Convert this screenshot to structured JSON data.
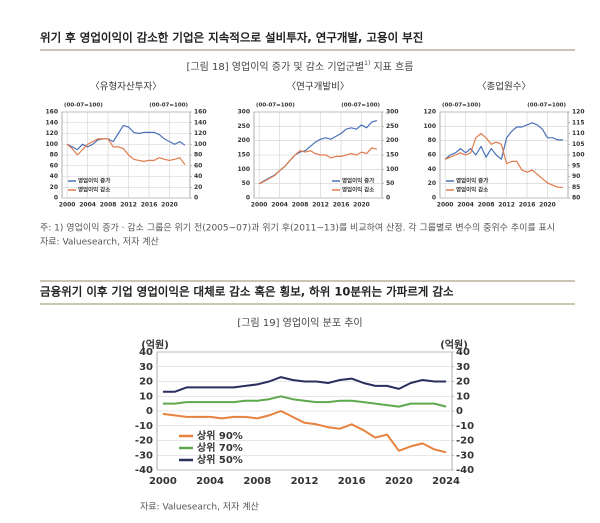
{
  "section1": {
    "heading": "위기 후 영업이익이 감소한 기업은 지속적으로 설비투자, 연구개발, 고용이 부진"
  },
  "figure18": {
    "title_parts": [
      "[그림 18] 영업이익 증가 및 감소 기업군별",
      "1)",
      " 지표 흐름"
    ],
    "note": "주: 1) 영업이익 증가 · 감소 그룹은 위기 전(2005~07)과 위기 후(2011~13)를 비교하여 산정. 각 그룹별로 변수의 중위수 추이를 표시",
    "source": "자료: Valuesearch, 저자 계산"
  },
  "section2": {
    "heading": "금융위기 이후 기업 영업이익은 대체로 감소 혹은 횡보, 하위 10분위는 가파르게 감소"
  },
  "figure19": {
    "title": "[그림 19] 영업이익 분포 추이",
    "source": "자료: Valuesearch, 저자 계산"
  },
  "chart_data": [
    {
      "type": "line",
      "title": "〈유형자산투자〉",
      "y_label": "(00-07=100)",
      "y2_label": "(00-07=100)",
      "x": [
        2000,
        2001,
        2002,
        2003,
        2004,
        2005,
        2006,
        2007,
        2008,
        2009,
        2010,
        2011,
        2012,
        2013,
        2014,
        2015,
        2016,
        2017,
        2018,
        2019,
        2020,
        2021,
        2022,
        2023
      ],
      "xlim": [
        1999,
        2024
      ],
      "xticks": [
        2000,
        2004,
        2008,
        2012,
        2016,
        2020
      ],
      "ylim": [
        0,
        160
      ],
      "yticks": [
        0,
        20,
        40,
        60,
        80,
        100,
        120,
        140,
        160
      ],
      "y2lim": [
        0,
        160
      ],
      "y2ticks": [
        0,
        20,
        40,
        60,
        80,
        100,
        120,
        140,
        160
      ],
      "grid": true,
      "legend": "lower left",
      "series": [
        {
          "name": "영업이익 증가",
          "color": "#4a72b8",
          "values": [
            100,
            95,
            90,
            100,
            95,
            100,
            108,
            110,
            110,
            105,
            120,
            135,
            132,
            122,
            120,
            122,
            122,
            122,
            118,
            110,
            105,
            100,
            105,
            98
          ]
        },
        {
          "name": "영업이익 감소",
          "color": "#e07b4c",
          "values": [
            100,
            92,
            80,
            90,
            100,
            105,
            110,
            110,
            110,
            95,
            95,
            92,
            80,
            72,
            70,
            68,
            70,
            70,
            75,
            72,
            70,
            72,
            75,
            62
          ]
        }
      ]
    },
    {
      "type": "line",
      "title": "〈연구개발비〉",
      "y_label": "(00-07=100)",
      "y2_label": "(00-07=100)",
      "x": [
        2000,
        2001,
        2002,
        2003,
        2004,
        2005,
        2006,
        2007,
        2008,
        2009,
        2010,
        2011,
        2012,
        2013,
        2014,
        2015,
        2016,
        2017,
        2018,
        2019,
        2020,
        2021,
        2022,
        2023
      ],
      "xlim": [
        1999,
        2024
      ],
      "xticks": [
        2000,
        2004,
        2008,
        2012,
        2016,
        2020
      ],
      "ylim": [
        0,
        300
      ],
      "yticks": [
        0,
        50,
        100,
        150,
        200,
        250,
        300
      ],
      "y2lim": [
        0,
        300
      ],
      "y2ticks": [
        0,
        50,
        100,
        150,
        200,
        250,
        300
      ],
      "grid": true,
      "legend": "lower right",
      "series": [
        {
          "name": "영업이익 증가",
          "color": "#4a72b8",
          "values": [
            50,
            60,
            70,
            80,
            95,
            110,
            130,
            150,
            160,
            165,
            180,
            195,
            205,
            210,
            205,
            215,
            225,
            240,
            245,
            240,
            255,
            245,
            265,
            270
          ]
        },
        {
          "name": "영업이익 감소",
          "color": "#e07b4c",
          "values": [
            50,
            58,
            68,
            78,
            95,
            110,
            130,
            150,
            165,
            160,
            165,
            155,
            150,
            150,
            140,
            145,
            145,
            150,
            155,
            150,
            160,
            155,
            175,
            170
          ]
        }
      ]
    },
    {
      "type": "line",
      "title": "〈종업원수〉",
      "y_label": "(00-07=100)",
      "y2_label": "(00-07=100)",
      "x": [
        2000,
        2001,
        2002,
        2003,
        2004,
        2005,
        2006,
        2007,
        2008,
        2009,
        2010,
        2011,
        2012,
        2013,
        2014,
        2015,
        2016,
        2017,
        2018,
        2019,
        2020,
        2021,
        2022,
        2023
      ],
      "xlim": [
        1999,
        2024
      ],
      "xticks": [
        2000,
        2004,
        2008,
        2012,
        2016,
        2020
      ],
      "ylim": [
        0,
        120
      ],
      "yticks": [
        0,
        20,
        40,
        60,
        80,
        100,
        120
      ],
      "y2lim": [
        80,
        120
      ],
      "y2ticks": [
        80,
        85,
        90,
        95,
        100,
        105,
        110,
        115,
        120
      ],
      "grid": true,
      "legend": "lower left",
      "series": [
        {
          "name": "영업이익 증가",
          "color": "#4a72b8",
          "axis": "y2",
          "values": [
            98,
            100,
            101,
            103,
            101,
            103,
            100,
            104,
            99,
            103,
            100,
            98,
            108,
            111,
            113,
            113,
            114,
            115,
            114,
            112,
            108,
            108,
            107,
            107
          ]
        },
        {
          "name": "영업이익 감소",
          "color": "#e07b4c",
          "axis": "y2",
          "values": [
            98,
            99,
            100,
            101,
            100,
            101,
            108,
            110,
            108,
            105,
            106,
            105,
            96,
            97,
            97,
            93,
            92,
            93,
            91,
            89,
            87,
            86,
            85,
            85
          ]
        }
      ]
    },
    {
      "type": "line",
      "y_label": "(억원)",
      "y2_label": "(억원)",
      "x": [
        2000,
        2001,
        2002,
        2003,
        2004,
        2005,
        2006,
        2007,
        2008,
        2009,
        2010,
        2011,
        2012,
        2013,
        2014,
        2015,
        2016,
        2017,
        2018,
        2019,
        2020,
        2021,
        2022,
        2023,
        2024
      ],
      "xlim": [
        1999.5,
        2024.5
      ],
      "xticks": [
        2000,
        2004,
        2008,
        2012,
        2016,
        2020,
        2024
      ],
      "ylim": [
        -40,
        40
      ],
      "yticks": [
        -40,
        -30,
        -20,
        -10,
        0,
        10,
        20,
        30,
        40
      ],
      "y2lim": [
        -40,
        40
      ],
      "y2ticks": [
        -40,
        -30,
        -20,
        -10,
        0,
        10,
        20,
        30,
        40
      ],
      "grid": true,
      "legend": "lower left",
      "series": [
        {
          "name": "상위 90%",
          "color": "#e8823f",
          "values": [
            -2,
            -3,
            -4,
            -4,
            -4,
            -5,
            -4,
            -4,
            -5,
            -3,
            0,
            -4,
            -8,
            -9,
            -11,
            -12,
            -9,
            -13,
            -18,
            -16,
            -27,
            -24,
            -22,
            -26,
            -28
          ]
        },
        {
          "name": "상위 70%",
          "color": "#5ea84e",
          "values": [
            5,
            5,
            6,
            6,
            6,
            6,
            6,
            7,
            7,
            8,
            10,
            8,
            7,
            6,
            6,
            7,
            7,
            6,
            5,
            4,
            3,
            5,
            5,
            5,
            3
          ]
        },
        {
          "name": "상위 50%",
          "color": "#2a2f5e",
          "values": [
            13,
            13,
            16,
            16,
            16,
            16,
            16,
            17,
            18,
            20,
            23,
            21,
            20,
            20,
            19,
            21,
            22,
            19,
            17,
            17,
            15,
            19,
            21,
            20,
            20
          ]
        }
      ]
    }
  ]
}
